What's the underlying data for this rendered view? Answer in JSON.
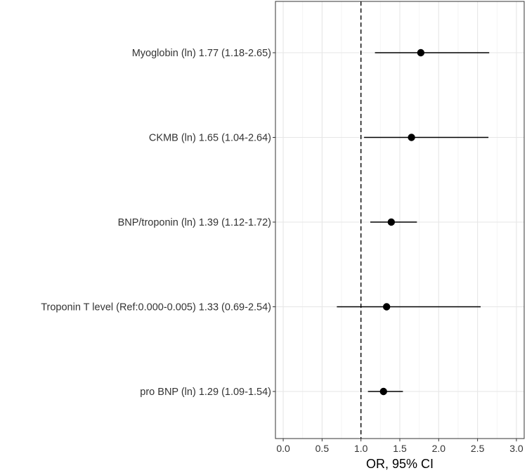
{
  "chart_data": {
    "type": "forest",
    "title": "",
    "xlabel": "OR, 95% CI",
    "ylabel": "",
    "xlim": [
      -0.1,
      3.1
    ],
    "x_ticks": [
      0,
      0.5,
      1,
      1.5,
      2,
      2.5,
      3
    ],
    "x_tick_labels": [
      "0.0",
      "0.5",
      "1.0",
      "1.5",
      "2.0",
      "2.5",
      "3.0"
    ],
    "reference_line": 1.0,
    "grid": true,
    "rows": [
      {
        "label": "Myoglobin (ln)  1.77 (1.18-2.65)",
        "or": 1.77,
        "lower": 1.18,
        "upper": 2.65
      },
      {
        "label": "CKMB (ln) 1.65 (1.04-2.64)",
        "or": 1.65,
        "lower": 1.04,
        "upper": 2.64
      },
      {
        "label": "BNP/troponin (ln) 1.39 (1.12-1.72)",
        "or": 1.39,
        "lower": 1.12,
        "upper": 1.72
      },
      {
        "label": "Troponin T level (Ref:0.000-0.005) 1.33 (0.69-2.54)",
        "or": 1.33,
        "lower": 0.69,
        "upper": 2.54
      },
      {
        "label": "pro BNP (ln) 1.29 (1.09-1.54)",
        "or": 1.29,
        "lower": 1.09,
        "upper": 1.54
      }
    ]
  }
}
